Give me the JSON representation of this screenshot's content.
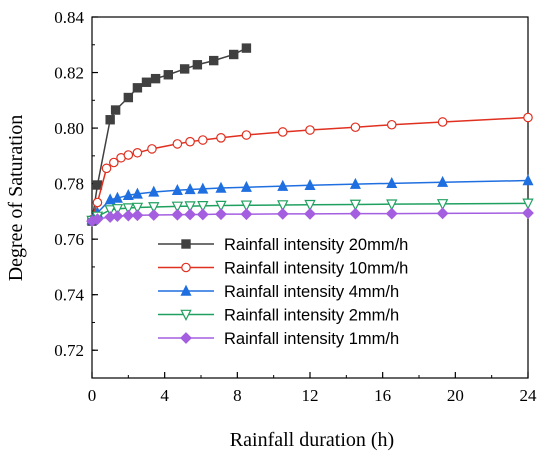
{
  "chart_data": {
    "type": "line",
    "xlabel": "Rainfall duration (h)",
    "ylabel": "Degree of Saturation",
    "xlim": [
      0,
      24
    ],
    "ylim": [
      0.71,
      0.84
    ],
    "xticks": [
      0,
      4,
      8,
      12,
      16,
      20,
      24
    ],
    "yticks": [
      0.72,
      0.74,
      0.76,
      0.78,
      0.8,
      0.82,
      0.84
    ],
    "ytick_labels": [
      "0.72",
      "0.74",
      "0.76",
      "0.78",
      "0.80",
      "0.82",
      "0.84"
    ],
    "grid": false,
    "legend_position": "bottom-center",
    "series": [
      {
        "name": "Rainfall intensity 20mm/h",
        "color": "#404040",
        "marker": "square",
        "x": [
          0,
          0.3,
          1.0,
          1.3,
          2.0,
          2.5,
          3.0,
          3.5,
          4.2,
          5.1,
          5.8,
          6.7,
          7.8,
          8.5
        ],
        "y": [
          0.7665,
          0.7795,
          0.803,
          0.8065,
          0.811,
          0.8145,
          0.8165,
          0.8178,
          0.8192,
          0.8213,
          0.8228,
          0.8243,
          0.8265,
          0.8288
        ]
      },
      {
        "name": "Rainfall intensity 10mm/h",
        "color": "#e03020",
        "marker": "circle-open",
        "x": [
          0,
          0.3,
          0.8,
          1.2,
          1.6,
          2.0,
          2.5,
          3.3,
          4.7,
          5.4,
          6.1,
          7.1,
          8.5,
          10.5,
          12.0,
          14.5,
          16.5,
          19.3,
          24
        ],
        "y": [
          0.767,
          0.7732,
          0.7855,
          0.7876,
          0.7893,
          0.7903,
          0.7911,
          0.7925,
          0.7943,
          0.7951,
          0.7957,
          0.7965,
          0.7975,
          0.7986,
          0.7993,
          0.8003,
          0.8012,
          0.8022,
          0.8038
        ]
      },
      {
        "name": "Rainfall intensity 4mm/h",
        "color": "#1f6fe0",
        "marker": "triangle-up",
        "x": [
          0,
          0.3,
          1.0,
          1.4,
          2.0,
          2.5,
          3.4,
          4.7,
          5.4,
          6.1,
          7.1,
          8.5,
          10.5,
          12.0,
          14.5,
          16.5,
          19.3,
          24
        ],
        "y": [
          0.767,
          0.7695,
          0.7742,
          0.7748,
          0.7758,
          0.7763,
          0.777,
          0.7776,
          0.7779,
          0.7781,
          0.7784,
          0.7787,
          0.7791,
          0.7794,
          0.7798,
          0.7801,
          0.7805,
          0.7811
        ]
      },
      {
        "name": "Rainfall intensity 2mm/h",
        "color": "#20a060",
        "marker": "triangle-down-open",
        "x": [
          0,
          0.3,
          1.0,
          1.4,
          2.0,
          2.5,
          3.4,
          4.7,
          5.4,
          6.1,
          7.1,
          8.5,
          10.5,
          12.0,
          14.5,
          16.5,
          19.3,
          24
        ],
        "y": [
          0.7667,
          0.7682,
          0.7705,
          0.7709,
          0.7712,
          0.7714,
          0.7716,
          0.7718,
          0.7719,
          0.772,
          0.7721,
          0.7722,
          0.7723,
          0.7724,
          0.7725,
          0.7726,
          0.7727,
          0.7729
        ]
      },
      {
        "name": "Rainfall intensity 1mm/h",
        "color": "#a45ee0",
        "marker": "diamond",
        "x": [
          0,
          0.3,
          1.0,
          1.4,
          2.0,
          2.5,
          3.4,
          4.7,
          5.4,
          6.1,
          7.1,
          8.5,
          10.5,
          12.0,
          14.5,
          16.5,
          19.3,
          24
        ],
        "y": [
          0.7665,
          0.7672,
          0.768,
          0.7683,
          0.7685,
          0.7686,
          0.7687,
          0.7688,
          0.7689,
          0.7689,
          0.769,
          0.769,
          0.7691,
          0.7691,
          0.7692,
          0.7692,
          0.7693,
          0.7694
        ]
      }
    ]
  }
}
